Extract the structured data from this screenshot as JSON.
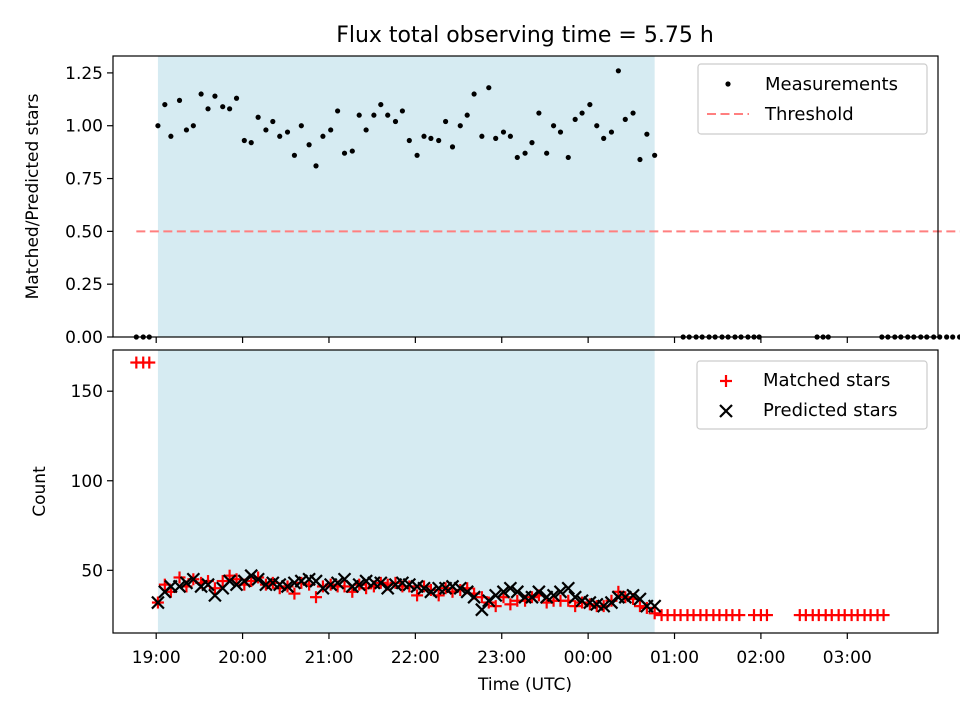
{
  "chart_data": {
    "type": "scatter",
    "title": "Flux total observing time = 5.75 h",
    "shared_x": {
      "label": "Time (UTC)",
      "unit": "hours since 18:00 UTC (values >24 are after midnight)",
      "range": [
        18.5,
        28.05
      ],
      "ticks": [
        19,
        20,
        21,
        22,
        23,
        24,
        25,
        26,
        27
      ],
      "tick_labels": [
        "19:00",
        "20:00",
        "21:00",
        "22:00",
        "23:00",
        "00:00",
        "01:00",
        "02:00",
        "03:00"
      ]
    },
    "observing_window": {
      "start": 19.02,
      "end": 24.77
    },
    "panels": [
      {
        "name": "ratio",
        "ylabel": "Matched/Predicted stars",
        "ylim": [
          0.0,
          1.33
        ],
        "yticks": [
          0.0,
          0.25,
          0.5,
          0.75,
          1.0,
          1.25
        ],
        "ytick_labels": [
          "0.00",
          "0.25",
          "0.50",
          "0.75",
          "1.00",
          "1.25"
        ],
        "legend": {
          "position": "top-right",
          "entries": [
            "Measurements",
            "Threshold"
          ]
        },
        "threshold": {
          "name": "Threshold",
          "value": 0.5,
          "x_range": [
            18.77,
            28.45
          ],
          "color": "#ff7f7f"
        },
        "series": [
          {
            "name": "Measurements",
            "marker": "dot",
            "color": "#000000",
            "x": [
              18.77,
              18.85,
              18.92,
              19.02,
              19.1,
              19.17,
              19.27,
              19.35,
              19.43,
              19.52,
              19.6,
              19.68,
              19.77,
              19.85,
              19.93,
              20.02,
              20.1,
              20.18,
              20.27,
              20.35,
              20.43,
              20.52,
              20.6,
              20.68,
              20.77,
              20.85,
              20.93,
              21.02,
              21.1,
              21.18,
              21.27,
              21.35,
              21.43,
              21.52,
              21.6,
              21.68,
              21.77,
              21.85,
              21.93,
              22.02,
              22.1,
              22.18,
              22.27,
              22.35,
              22.43,
              22.52,
              22.6,
              22.68,
              22.77,
              22.85,
              22.93,
              23.02,
              23.1,
              23.18,
              23.27,
              23.35,
              23.43,
              23.52,
              23.6,
              23.68,
              23.77,
              23.85,
              23.93,
              24.02,
              24.1,
              24.18,
              24.27,
              24.35,
              24.43,
              24.52,
              24.6,
              24.68,
              24.77,
              25.1,
              25.17,
              25.25,
              25.32,
              25.4,
              25.47,
              25.55,
              25.62,
              25.7,
              25.77,
              25.85,
              25.92,
              25.98,
              26.65,
              26.72,
              26.78,
              27.4,
              27.47,
              27.55,
              27.62,
              27.7,
              27.77,
              27.85,
              27.92,
              28.0,
              28.07,
              28.15,
              28.22,
              28.3,
              28.37,
              28.45
            ],
            "y": [
              0,
              0,
              0,
              1.0,
              1.1,
              0.95,
              1.12,
              0.98,
              1.0,
              1.15,
              1.08,
              1.14,
              1.09,
              1.08,
              1.13,
              0.93,
              0.92,
              1.04,
              0.98,
              1.02,
              0.95,
              0.97,
              0.86,
              1.0,
              0.91,
              0.81,
              0.95,
              0.98,
              1.07,
              0.87,
              0.88,
              1.05,
              0.98,
              1.05,
              1.1,
              1.05,
              1.02,
              1.07,
              0.93,
              0.86,
              0.95,
              0.94,
              0.93,
              1.02,
              0.9,
              1.0,
              1.05,
              1.15,
              0.95,
              1.18,
              0.94,
              0.97,
              0.95,
              0.85,
              0.87,
              0.92,
              1.06,
              0.87,
              1.0,
              0.97,
              0.85,
              1.03,
              1.06,
              1.1,
              1.0,
              0.94,
              0.97,
              1.26,
              1.03,
              1.06,
              0.84,
              0.96,
              0.86,
              0,
              0,
              0,
              0,
              0,
              0,
              0,
              0,
              0,
              0,
              0,
              0,
              0,
              0,
              0,
              0,
              0,
              0,
              0,
              0,
              0,
              0,
              0,
              0,
              0,
              0,
              0,
              0,
              0,
              0,
              0
            ]
          }
        ]
      },
      {
        "name": "counts",
        "ylabel": "Count",
        "ylim": [
          15,
          173
        ],
        "yticks": [
          50,
          100,
          150
        ],
        "ytick_labels": [
          "50",
          "100",
          "150"
        ],
        "legend": {
          "position": "top-right",
          "entries": [
            "Matched stars",
            "Predicted stars"
          ]
        },
        "series": [
          {
            "name": "Matched stars",
            "marker": "plus",
            "color": "#ff0000",
            "x": [
              18.77,
              18.85,
              18.92,
              19.02,
              19.1,
              19.17,
              19.27,
              19.35,
              19.43,
              19.52,
              19.6,
              19.68,
              19.77,
              19.85,
              19.93,
              20.02,
              20.1,
              20.18,
              20.27,
              20.35,
              20.43,
              20.52,
              20.6,
              20.68,
              20.77,
              20.85,
              20.93,
              21.02,
              21.1,
              21.18,
              21.27,
              21.35,
              21.43,
              21.52,
              21.6,
              21.68,
              21.77,
              21.85,
              21.93,
              22.02,
              22.1,
              22.18,
              22.27,
              22.35,
              22.43,
              22.52,
              22.6,
              22.68,
              22.77,
              22.85,
              22.93,
              23.02,
              23.1,
              23.18,
              23.27,
              23.35,
              23.43,
              23.52,
              23.6,
              23.68,
              23.77,
              23.85,
              23.93,
              24.02,
              24.1,
              24.18,
              24.27,
              24.35,
              24.43,
              24.52,
              24.6,
              24.68,
              24.77,
              24.85,
              24.92,
              25.0,
              25.07,
              25.15,
              25.22,
              25.3,
              25.37,
              25.45,
              25.52,
              25.6,
              25.67,
              25.75,
              25.92,
              26.0,
              26.07,
              26.45,
              26.52,
              26.6,
              26.67,
              26.75,
              26.82,
              26.9,
              26.97,
              27.05,
              27.12,
              27.2,
              27.27,
              27.35,
              27.42
            ],
            "y": [
              166,
              166,
              166,
              32,
              42,
              38,
              46,
              41,
              45,
              43,
              44,
              40,
              44,
              47,
              45,
              42,
              44,
              46,
              42,
              43,
              40,
              41,
              37,
              43,
              42,
              35,
              41,
              42,
              41,
              41,
              38,
              42,
              40,
              41,
              43,
              42,
              43,
              41,
              41,
              36,
              41,
              39,
              36,
              40,
              38,
              39,
              40,
              37,
              35,
              32,
              30,
              35,
              31,
              33,
              33,
              35,
              36,
              32,
              33,
              33,
              33,
              30,
              32,
              31,
              30,
              30,
              33,
              38,
              35,
              34,
              30,
              29,
              26,
              25,
              25,
              25,
              25,
              25,
              25,
              25,
              25,
              25,
              25,
              25,
              25,
              25,
              25,
              25,
              25,
              25,
              25,
              25,
              25,
              25,
              25,
              25,
              25,
              25,
              25,
              25,
              25,
              25,
              25
            ]
          },
          {
            "name": "Predicted stars",
            "marker": "cross",
            "color": "#000000",
            "x": [
              19.02,
              19.1,
              19.17,
              19.27,
              19.35,
              19.43,
              19.52,
              19.6,
              19.68,
              19.77,
              19.85,
              19.93,
              20.02,
              20.1,
              20.18,
              20.27,
              20.35,
              20.43,
              20.52,
              20.6,
              20.68,
              20.77,
              20.85,
              20.93,
              21.02,
              21.1,
              21.18,
              21.27,
              21.35,
              21.43,
              21.52,
              21.6,
              21.68,
              21.77,
              21.85,
              21.93,
              22.02,
              22.1,
              22.18,
              22.27,
              22.35,
              22.43,
              22.52,
              22.6,
              22.68,
              22.77,
              22.85,
              22.93,
              23.02,
              23.1,
              23.18,
              23.27,
              23.35,
              23.43,
              23.52,
              23.6,
              23.68,
              23.77,
              23.85,
              23.93,
              24.02,
              24.1,
              24.18,
              24.27,
              24.35,
              24.43,
              24.52,
              24.6,
              24.68,
              24.77
            ],
            "y": [
              32,
              38,
              41,
              41,
              43,
              45,
              41,
              42,
              36,
              40,
              44,
              42,
              44,
              47,
              45,
              42,
              43,
              42,
              41,
              43,
              44,
              45,
              44,
              40,
              42,
              43,
              45,
              41,
              42,
              44,
              43,
              43,
              40,
              42,
              43,
              42,
              41,
              40,
              38,
              40,
              40,
              41,
              40,
              38,
              35,
              28,
              33,
              36,
              38,
              40,
              38,
              35,
              35,
              38,
              35,
              36,
              38,
              40,
              35,
              33,
              32,
              31,
              30,
              32,
              35,
              35,
              36,
              34,
              30,
              30
            ]
          }
        ]
      }
    ]
  }
}
